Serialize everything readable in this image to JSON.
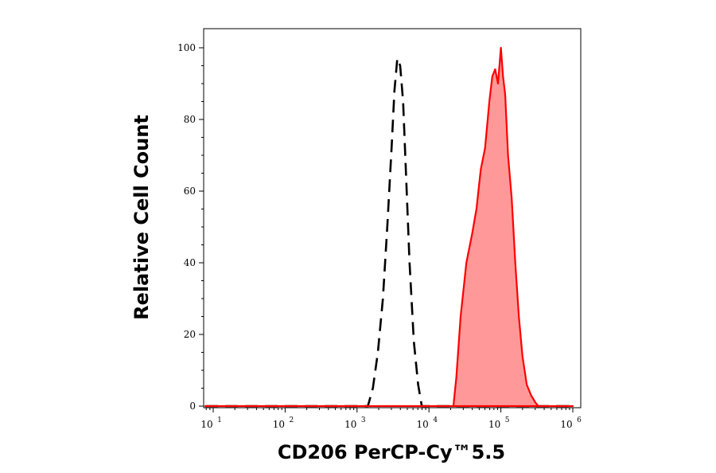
{
  "chart_data": {
    "type": "area",
    "xlabel": "CD206 PerCP-Cy™5.5",
    "ylabel": "Relative Cell Count",
    "x_scale": "log",
    "xlim": [
      1,
      6
    ],
    "ylim": [
      0,
      100
    ],
    "x_tick_labels": [
      {
        "base": "10",
        "exp": "1",
        "value": 1
      },
      {
        "base": "10",
        "exp": "2",
        "value": 2
      },
      {
        "base": "10",
        "exp": "3",
        "value": 3
      },
      {
        "base": "10",
        "exp": "4",
        "value": 4
      },
      {
        "base": "10",
        "exp": "5",
        "value": 5
      },
      {
        "base": "10",
        "exp": "6",
        "value": 6
      }
    ],
    "y_ticks": [
      0,
      20,
      40,
      60,
      80,
      100
    ],
    "grid": false,
    "series": [
      {
        "style": "dashed-outline",
        "color": "#000000",
        "x": [
          0.89,
          2.5,
          3.15,
          3.22,
          3.29,
          3.36,
          3.42,
          3.48,
          3.52,
          3.56,
          3.6,
          3.64,
          3.68,
          3.73,
          3.79,
          3.85,
          3.9,
          5.1,
          6.0
        ],
        "values": [
          0,
          0,
          0,
          5,
          15,
          30,
          50,
          72,
          88,
          97,
          95,
          85,
          65,
          40,
          18,
          6,
          0,
          0,
          0
        ]
      },
      {
        "style": "filled",
        "color": "#ff0000",
        "fill": "#ff9999",
        "x": [
          0.89,
          3.9,
          4.34,
          4.38,
          4.44,
          4.52,
          4.6,
          4.66,
          4.72,
          4.78,
          4.84,
          4.88,
          4.92,
          4.96,
          5.0,
          5.03,
          5.06,
          5.1,
          5.15,
          5.2,
          5.25,
          5.3,
          5.36,
          5.42,
          5.48,
          5.52,
          5.56,
          6.0
        ],
        "values": [
          0,
          0,
          0,
          8,
          25,
          40,
          48,
          55,
          66,
          72,
          85,
          92,
          94,
          90,
          100,
          92,
          87,
          70,
          58,
          40,
          25,
          14,
          6,
          3,
          1,
          0,
          0,
          0
        ]
      }
    ]
  }
}
